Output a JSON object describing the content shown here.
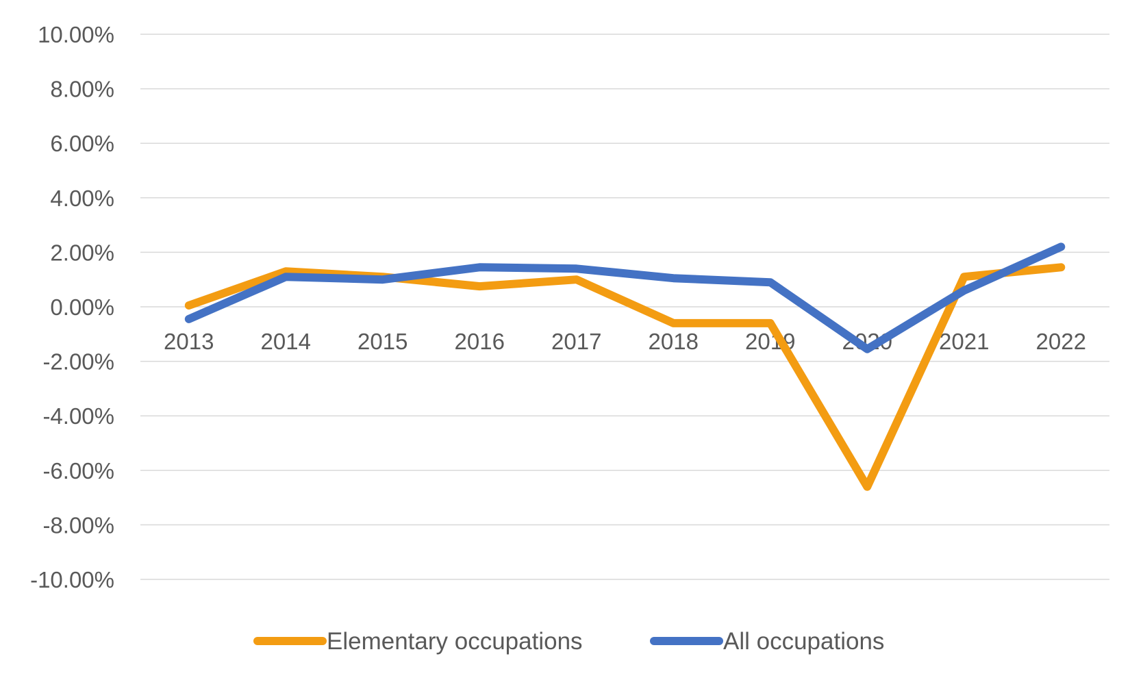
{
  "chart_data": {
    "type": "line",
    "categories": [
      "2013",
      "2014",
      "2015",
      "2016",
      "2017",
      "2018",
      "2019",
      "2020",
      "2021",
      "2022"
    ],
    "series": [
      {
        "name": "Elementary occupations",
        "color": "#f39c12",
        "values": [
          0.0005,
          0.013,
          0.011,
          0.0075,
          0.01,
          -0.006,
          -0.006,
          -0.066,
          0.011,
          0.0145
        ]
      },
      {
        "name": "All occupations",
        "color": "#4472c4",
        "values": [
          -0.0045,
          0.011,
          0.01,
          0.0145,
          0.014,
          0.0105,
          0.009,
          -0.0155,
          0.006,
          0.022
        ]
      }
    ],
    "y_ticks": [
      "10.00%",
      "8.00%",
      "6.00%",
      "4.00%",
      "2.00%",
      "0.00%",
      "-2.00%",
      "-4.00%",
      "-6.00%",
      "-8.00%",
      "-10.00%"
    ],
    "ylim": [
      -0.1,
      0.1
    ],
    "grid": true,
    "legend_position": "bottom",
    "title": "",
    "xlabel": "",
    "ylabel": ""
  }
}
